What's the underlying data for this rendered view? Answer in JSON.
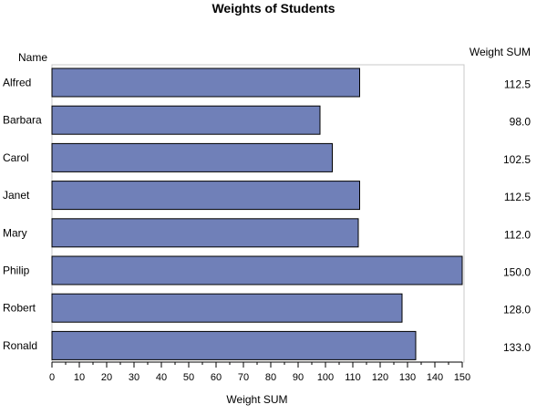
{
  "chart_data": {
    "type": "bar",
    "orientation": "horizontal",
    "title": "Weights of Students",
    "category_header": "Name",
    "value_header": "Weight SUM",
    "xlabel": "Weight SUM",
    "categories": [
      "Alfred",
      "Barbara",
      "Carol",
      "Janet",
      "Mary",
      "Philip",
      "Robert",
      "Ronald"
    ],
    "values": [
      112.5,
      98.0,
      102.5,
      112.5,
      112.0,
      150.0,
      128.0,
      133.0
    ],
    "value_labels": [
      "112.5",
      "98.0",
      "102.5",
      "112.5",
      "112.0",
      "150.0",
      "128.0",
      "133.0"
    ],
    "xlim": [
      0,
      150
    ],
    "ticks": [
      0,
      10,
      20,
      30,
      40,
      50,
      60,
      70,
      80,
      90,
      100,
      110,
      120,
      130,
      140,
      150
    ],
    "minor_tick_step": 5,
    "grid": false,
    "legend": "none",
    "colors": {
      "bar_fill": "#7080b8",
      "bar_stroke": "#000000",
      "frame": "#c8c8c8",
      "text": "#000000"
    }
  }
}
